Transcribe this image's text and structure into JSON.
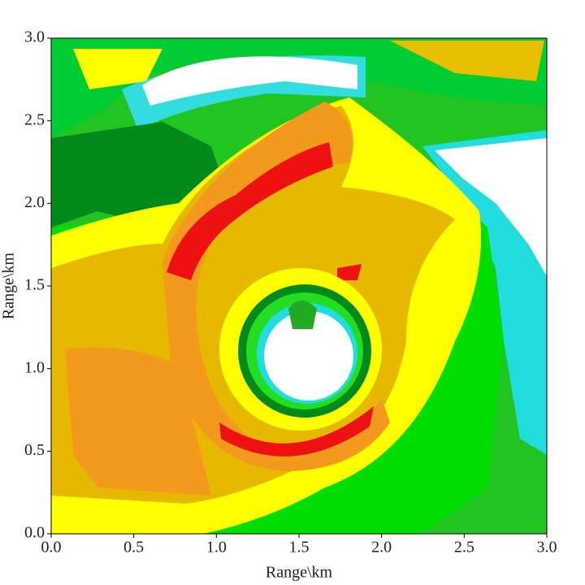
{
  "chart_data": {
    "type": "heatmap",
    "x_label": "Range\\km",
    "y_label": "Range\\km",
    "xlim": [
      0,
      3
    ],
    "ylim": [
      0,
      3
    ],
    "xticks": [
      {
        "value": 0,
        "label": "0.0"
      },
      {
        "value": 0.5,
        "label": "0.5"
      },
      {
        "value": 1,
        "label": "1.0"
      },
      {
        "value": 1.5,
        "label": "1.5"
      },
      {
        "value": 2,
        "label": "2.0"
      },
      {
        "value": 2.5,
        "label": "2.5"
      },
      {
        "value": 3,
        "label": "3.0"
      }
    ],
    "yticks": [
      {
        "value": 0,
        "label": "0.0"
      },
      {
        "value": 0.5,
        "label": "0.5"
      },
      {
        "value": 1,
        "label": "1.0"
      },
      {
        "value": 1.5,
        "label": "1.5"
      },
      {
        "value": 2,
        "label": "2.0"
      },
      {
        "value": 2.5,
        "label": "2.5"
      },
      {
        "value": 3,
        "label": "3.0"
      }
    ]
  }
}
